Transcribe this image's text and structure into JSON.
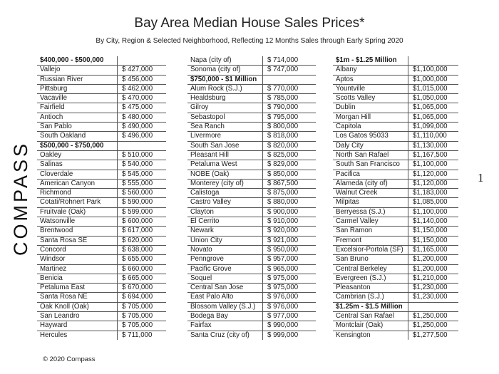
{
  "title": "Bay Area Median House Sales Prices*",
  "subtitle": "By City, Region & Selected Neighborhood, Reflecting 12 Months Sales through Early Spring 2020",
  "logo": "COMPASS",
  "page_number": "1",
  "copyright": "© 2020 Compass",
  "tables": [
    {
      "rows": [
        {
          "name": "$400,000 - $500,000",
          "value": "",
          "header": true
        },
        {
          "name": "Vallejo",
          "value": "$ 427,000"
        },
        {
          "name": "Russian River",
          "value": "$ 456,000"
        },
        {
          "name": "Pittsburg",
          "value": "$ 462,000"
        },
        {
          "name": "Vacaville",
          "value": "$ 470,000"
        },
        {
          "name": "Fairfield",
          "value": "$ 475,000"
        },
        {
          "name": "Antioch",
          "value": "$ 480,000"
        },
        {
          "name": "San Pablo",
          "value": "$ 490,000"
        },
        {
          "name": "South Oakland",
          "value": "$ 496,000"
        },
        {
          "name": "$500,000 - $750,000",
          "value": "",
          "header": true
        },
        {
          "name": "Oakley",
          "value": "$ 510,000"
        },
        {
          "name": "Salinas",
          "value": "$ 540,000"
        },
        {
          "name": "Cloverdale",
          "value": "$ 545,000"
        },
        {
          "name": "American Canyon",
          "value": "$ 555,000"
        },
        {
          "name": "Richmond",
          "value": "$ 560,000"
        },
        {
          "name": "Cotati/Rohnert Park",
          "value": "$ 590,000"
        },
        {
          "name": "Fruitvale (Oak)",
          "value": "$ 599,000"
        },
        {
          "name": "Watsonville",
          "value": "$ 600,000"
        },
        {
          "name": "Brentwood",
          "value": "$ 617,000"
        },
        {
          "name": "Santa Rosa SE",
          "value": "$ 620,000"
        },
        {
          "name": "Concord",
          "value": "$ 638,000"
        },
        {
          "name": "Windsor",
          "value": "$ 655,000"
        },
        {
          "name": "Martinez",
          "value": "$ 660,000"
        },
        {
          "name": "Benicia",
          "value": "$ 665,000"
        },
        {
          "name": "Petaluma East",
          "value": "$ 670,000"
        },
        {
          "name": "Santa Rosa NE",
          "value": "$ 694,000"
        },
        {
          "name": "Oak Knoll (Oak)",
          "value": "$ 705,000"
        },
        {
          "name": "San Leandro",
          "value": "$ 705,000"
        },
        {
          "name": "Hayward",
          "value": "$ 705,000"
        },
        {
          "name": "Hercules",
          "value": "$ 711,000"
        }
      ]
    },
    {
      "rows": [
        {
          "name": "Napa (city of)",
          "value": "$ 714,000"
        },
        {
          "name": "Sonoma (city of)",
          "value": "$ 747,000"
        },
        {
          "name": "$750,000 - $1 Million",
          "value": "",
          "header": true
        },
        {
          "name": "Alum Rock (S.J.)",
          "value": "$ 770,000"
        },
        {
          "name": "Healdsburg",
          "value": "$ 785,000"
        },
        {
          "name": "Gilroy",
          "value": "$ 790,000"
        },
        {
          "name": "Sebastopol",
          "value": "$ 795,000"
        },
        {
          "name": "Sea Ranch",
          "value": "$ 800,000"
        },
        {
          "name": "Livermore",
          "value": "$ 818,000"
        },
        {
          "name": "South San Jose",
          "value": "$ 820,000"
        },
        {
          "name": "Pleasant Hill",
          "value": "$ 825,000"
        },
        {
          "name": "Petaluma West",
          "value": "$ 829,000"
        },
        {
          "name": "NOBE (Oak)",
          "value": "$ 850,000"
        },
        {
          "name": "Monterey (city of)",
          "value": "$ 867,500"
        },
        {
          "name": "Calistoga",
          "value": "$ 875,000"
        },
        {
          "name": "Castro Valley",
          "value": "$ 880,000"
        },
        {
          "name": "Clayton",
          "value": "$ 900,000"
        },
        {
          "name": "El Cerrito",
          "value": "$ 910,000"
        },
        {
          "name": "Newark",
          "value": "$ 920,000"
        },
        {
          "name": "Union City",
          "value": "$ 921,000"
        },
        {
          "name": "Novato",
          "value": "$ 950,000"
        },
        {
          "name": "Penngrove",
          "value": "$ 957,000"
        },
        {
          "name": "Pacific Grove",
          "value": "$ 965,000"
        },
        {
          "name": "Soquel",
          "value": "$ 975,000"
        },
        {
          "name": "Central San Jose",
          "value": "$ 975,000"
        },
        {
          "name": "East Palo Alto",
          "value": "$ 976,000"
        },
        {
          "name": "Blossom Valley (S.J.)",
          "value": "$ 976,000"
        },
        {
          "name": "Bodega Bay",
          "value": "$ 977,000"
        },
        {
          "name": "Fairfax",
          "value": "$ 990,000"
        },
        {
          "name": "Santa Cruz (city of)",
          "value": "$ 999,000"
        }
      ]
    },
    {
      "rows": [
        {
          "name": "$1m - $1.25 Million",
          "value": "",
          "header": true
        },
        {
          "name": "Albany",
          "value": "$1,100,000"
        },
        {
          "name": "Aptos",
          "value": "$1,000,000"
        },
        {
          "name": "Yountville",
          "value": "$1,015,000"
        },
        {
          "name": "Scotts Valley",
          "value": "$1,050,000"
        },
        {
          "name": "Dublin",
          "value": "$1,065,000"
        },
        {
          "name": "Morgan Hill",
          "value": "$1,065,000"
        },
        {
          "name": "Capitola",
          "value": "$1,099,000"
        },
        {
          "name": "Los Gatos 95033",
          "value": "$1,110,000"
        },
        {
          "name": "Daly City",
          "value": "$1,130,000"
        },
        {
          "name": "North San Rafael",
          "value": "$1,167,500"
        },
        {
          "name": "South San Francisco",
          "value": "$1,100,000"
        },
        {
          "name": "Pacifica",
          "value": "$1,120,000"
        },
        {
          "name": "Alameda (city of)",
          "value": "$1,120,000"
        },
        {
          "name": "Walnut Creek",
          "value": "$1,183,000"
        },
        {
          "name": "Milpitas",
          "value": "$1,085,000"
        },
        {
          "name": "Berryessa (S.J.)",
          "value": "$1,100,000"
        },
        {
          "name": "Carmel Valley",
          "value": "$1,140,000"
        },
        {
          "name": "San Ramon",
          "value": "$1,150,000"
        },
        {
          "name": "Fremont",
          "value": "$1,150,000"
        },
        {
          "name": "Excelsior-Portola (SF)",
          "value": "$1,165,000"
        },
        {
          "name": "San Bruno",
          "value": "$1,200,000"
        },
        {
          "name": "Central Berkeley",
          "value": "$1,200,000"
        },
        {
          "name": "Evergreen (S.J.)",
          "value": "$1,210,000"
        },
        {
          "name": "Pleasanton",
          "value": "$1,230,000"
        },
        {
          "name": "Cambrian (S.J.)",
          "value": "$1,230,000"
        },
        {
          "name": "$1.25m - $1.5 Million",
          "value": "",
          "header": true
        },
        {
          "name": "Central San Rafael",
          "value": "$1,250,000"
        },
        {
          "name": "Montclair (Oak)",
          "value": "$1,250,000"
        },
        {
          "name": "Kensington",
          "value": "$1,277,500"
        }
      ]
    }
  ]
}
